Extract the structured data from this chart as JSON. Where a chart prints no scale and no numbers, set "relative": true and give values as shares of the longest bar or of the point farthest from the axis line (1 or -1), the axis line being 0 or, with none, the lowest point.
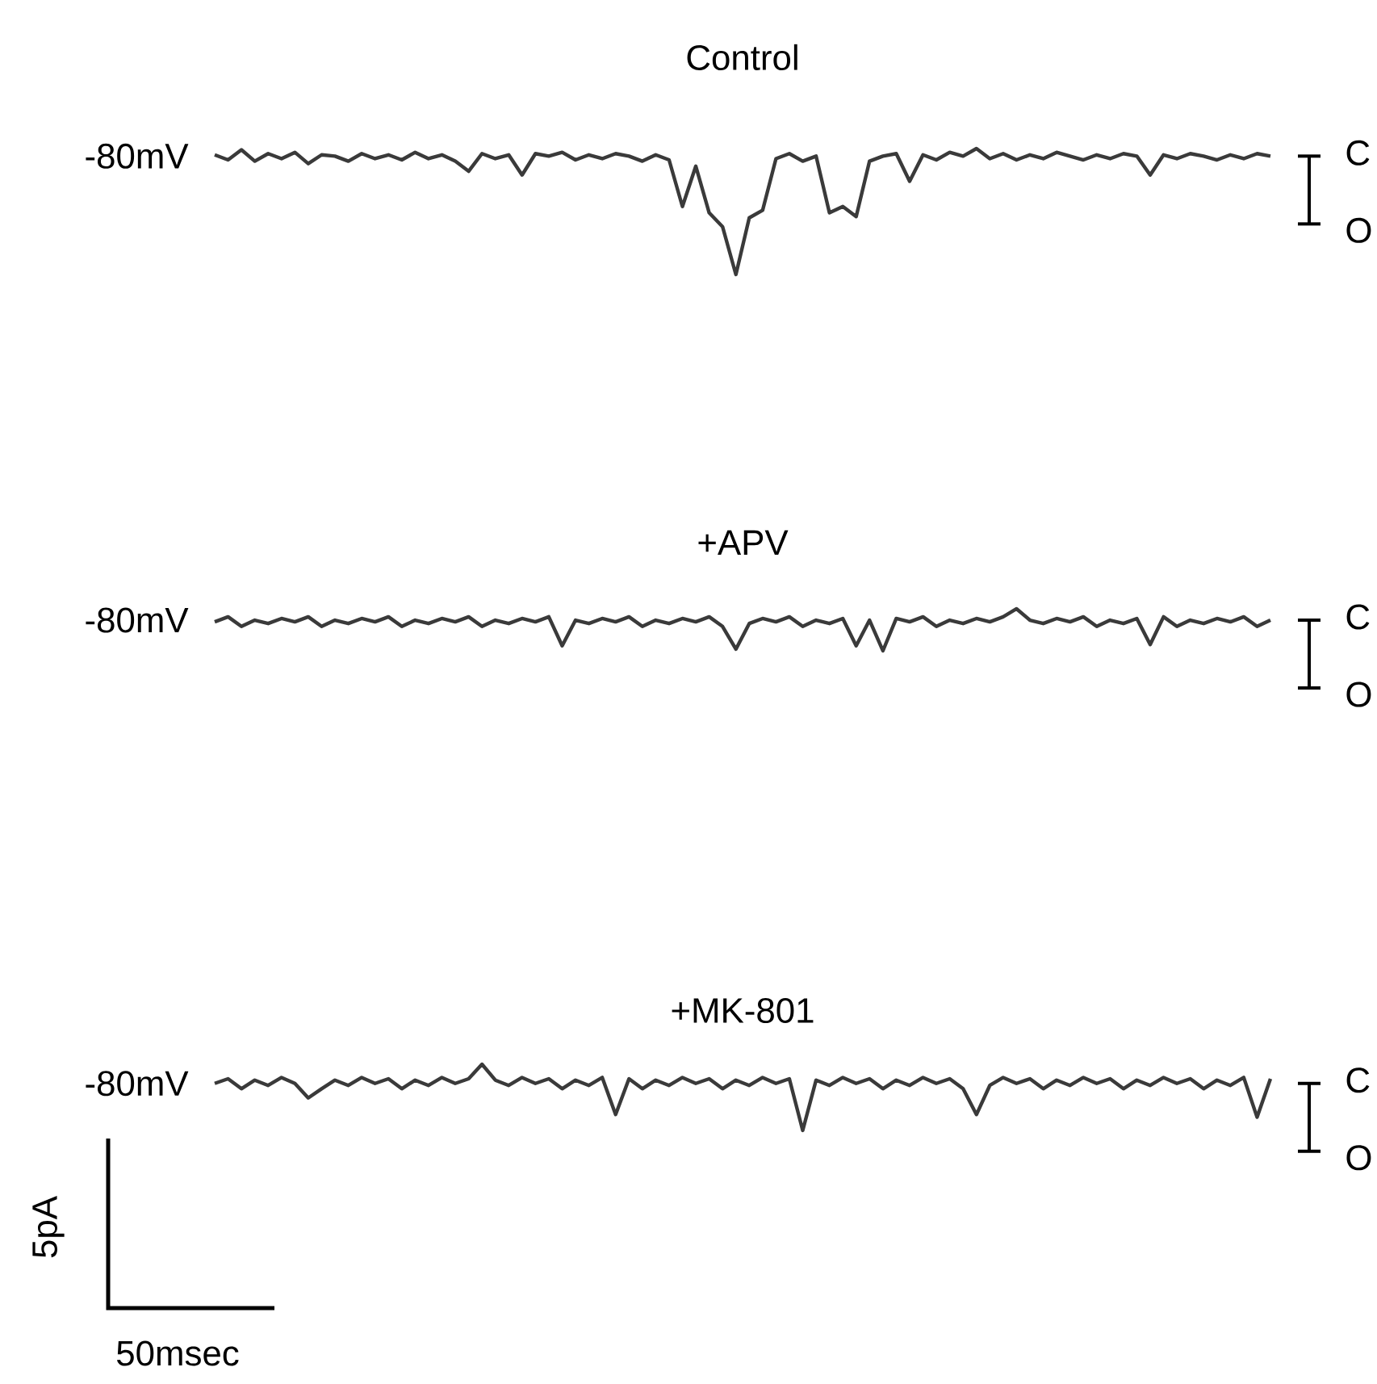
{
  "chart_data": [
    {
      "type": "line",
      "title": "Control",
      "ylabel": "-80mV",
      "relative": true,
      "annotations": [
        "C",
        "O"
      ],
      "categories": [
        null,
        null,
        null,
        null,
        null,
        null,
        null,
        null,
        null,
        null,
        null,
        null,
        null,
        null,
        null,
        null,
        null,
        null,
        null,
        null,
        null,
        null,
        null,
        null,
        null,
        null,
        null,
        null,
        null,
        null,
        null,
        null,
        null,
        null,
        null,
        null,
        null,
        null,
        null,
        null,
        null,
        null,
        null,
        null,
        null,
        null,
        null,
        null,
        null,
        null,
        null,
        null,
        null,
        null,
        null,
        null,
        null,
        null,
        null,
        null,
        null,
        null,
        null,
        null,
        null,
        null,
        null,
        null,
        null,
        null,
        null,
        null,
        null,
        null,
        null,
        null,
        null,
        null,
        null,
        null
      ],
      "series": [
        {
          "color": "#3a3a3a",
          "values": [
            0.95,
            0.91,
            0.99,
            0.9,
            0.96,
            0.92,
            0.97,
            0.88,
            0.95,
            0.94,
            0.9,
            0.96,
            0.92,
            0.95,
            0.91,
            0.97,
            0.92,
            0.95,
            0.9,
            0.82,
            0.96,
            0.92,
            0.95,
            0.79,
            0.96,
            0.94,
            0.97,
            0.91,
            0.95,
            0.92,
            0.96,
            0.94,
            0.9,
            0.95,
            0.91,
            0.54,
            0.86,
            0.49,
            0.38,
            0,
            0.45,
            0.51,
            0.92,
            0.96,
            0.9,
            0.94,
            0.49,
            0.54,
            0.46,
            0.9,
            0.94,
            0.96,
            0.74,
            0.95,
            0.91,
            0.97,
            0.94,
            1,
            0.92,
            0.96,
            0.91,
            0.95,
            0.92,
            0.97,
            0.94,
            0.91,
            0.95,
            0.92,
            0.96,
            0.94,
            0.79,
            0.95,
            0.92,
            0.96,
            0.94,
            0.91,
            0.95,
            0.92,
            0.96,
            0.94
          ]
        }
      ]
    },
    {
      "type": "line",
      "title": "+APV",
      "ylabel": "-80mV",
      "relative": true,
      "annotations": [
        "C",
        "O"
      ],
      "categories": [
        null,
        null,
        null,
        null,
        null,
        null,
        null,
        null,
        null,
        null,
        null,
        null,
        null,
        null,
        null,
        null,
        null,
        null,
        null,
        null,
        null,
        null,
        null,
        null,
        null,
        null,
        null,
        null,
        null,
        null,
        null,
        null,
        null,
        null,
        null,
        null,
        null,
        null,
        null,
        null,
        null,
        null,
        null,
        null,
        null,
        null,
        null,
        null,
        null,
        null,
        null,
        null,
        null,
        null,
        null,
        null,
        null,
        null,
        null,
        null,
        null,
        null,
        null,
        null,
        null,
        null,
        null,
        null,
        null,
        null,
        null,
        null,
        null,
        null,
        null,
        null,
        null,
        null,
        null,
        null
      ],
      "series": [
        {
          "color": "#3a3a3a",
          "values": [
            0.69,
            0.81,
            0.58,
            0.73,
            0.65,
            0.77,
            0.69,
            0.81,
            0.58,
            0.73,
            0.65,
            0.77,
            0.69,
            0.81,
            0.58,
            0.73,
            0.65,
            0.77,
            0.69,
            0.81,
            0.58,
            0.73,
            0.65,
            0.77,
            0.69,
            0.81,
            0.12,
            0.73,
            0.65,
            0.77,
            0.69,
            0.81,
            0.58,
            0.73,
            0.65,
            0.77,
            0.69,
            0.81,
            0.58,
            0.04,
            0.65,
            0.77,
            0.69,
            0.81,
            0.58,
            0.73,
            0.65,
            0.77,
            0.12,
            0.73,
            0,
            0.77,
            0.69,
            0.81,
            0.58,
            0.73,
            0.65,
            0.77,
            0.69,
            0.81,
            1,
            0.73,
            0.65,
            0.77,
            0.69,
            0.81,
            0.58,
            0.73,
            0.65,
            0.77,
            0.15,
            0.81,
            0.58,
            0.73,
            0.65,
            0.77,
            0.69,
            0.81,
            0.58,
            0.73
          ]
        }
      ]
    },
    {
      "type": "line",
      "title": "+MK-801",
      "ylabel": "-80mV",
      "relative": true,
      "annotations": [
        "C",
        "O",
        "5pA",
        "50msec"
      ],
      "categories": [
        null,
        null,
        null,
        null,
        null,
        null,
        null,
        null,
        null,
        null,
        null,
        null,
        null,
        null,
        null,
        null,
        null,
        null,
        null,
        null,
        null,
        null,
        null,
        null,
        null,
        null,
        null,
        null,
        null,
        null,
        null,
        null,
        null,
        null,
        null,
        null,
        null,
        null,
        null,
        null,
        null,
        null,
        null,
        null,
        null,
        null,
        null,
        null,
        null,
        null,
        null,
        null,
        null,
        null,
        null,
        null,
        null,
        null,
        null,
        null,
        null,
        null,
        null,
        null,
        null,
        null,
        null,
        null,
        null,
        null,
        null,
        null,
        null,
        null,
        null,
        null,
        null,
        null,
        null,
        null
      ],
      "series": [
        {
          "color": "#3a3a3a",
          "values": [
            0.71,
            0.78,
            0.63,
            0.76,
            0.68,
            0.8,
            0.71,
            0.49,
            0.63,
            0.76,
            0.68,
            0.8,
            0.71,
            0.78,
            0.63,
            0.76,
            0.68,
            0.8,
            0.71,
            0.78,
            1,
            0.76,
            0.68,
            0.8,
            0.71,
            0.78,
            0.63,
            0.76,
            0.68,
            0.8,
            0.24,
            0.78,
            0.63,
            0.76,
            0.68,
            0.8,
            0.71,
            0.78,
            0.63,
            0.76,
            0.68,
            0.8,
            0.71,
            0.78,
            0,
            0.76,
            0.68,
            0.8,
            0.71,
            0.78,
            0.63,
            0.76,
            0.68,
            0.8,
            0.71,
            0.78,
            0.63,
            0.24,
            0.68,
            0.8,
            0.71,
            0.78,
            0.63,
            0.76,
            0.68,
            0.8,
            0.71,
            0.78,
            0.63,
            0.76,
            0.68,
            0.8,
            0.71,
            0.78,
            0.63,
            0.76,
            0.68,
            0.8,
            0.2,
            0.78
          ]
        }
      ]
    }
  ]
}
